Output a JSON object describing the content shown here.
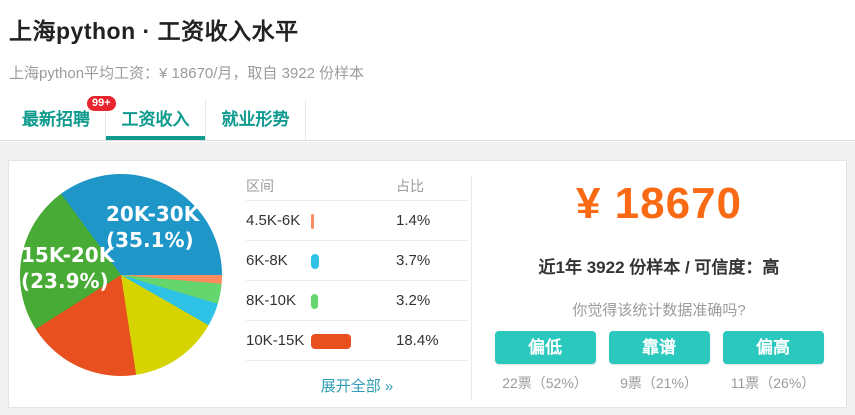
{
  "header": {
    "title": "上海python · 工资收入水平",
    "subtitle": "上海python平均工资：¥ 18670/月，取自 3922 份样本"
  },
  "tabs": [
    {
      "label": "最新招聘",
      "badge": "99+"
    },
    {
      "label": "工资收入",
      "active": true
    },
    {
      "label": "就业形势"
    }
  ],
  "chart_data": {
    "type": "pie",
    "legend_position": "none",
    "segments": [
      {
        "label": "4.5K-6K",
        "value": 1.4,
        "color": "#f98d5f"
      },
      {
        "label": "8K-10K",
        "value": 3.2,
        "color": "#65d56e"
      },
      {
        "label": "6K-8K",
        "value": 3.7,
        "color": "#2ec3e6"
      },
      {
        "label": "",
        "value": 14.3,
        "color": "#d6d400"
      },
      {
        "label": "10K-15K",
        "value": 18.4,
        "color": "#e8501f"
      },
      {
        "label": "15K-20K",
        "value": 23.9,
        "color": "#47ab35"
      },
      {
        "label": "20K-30K",
        "value": 35.1,
        "color": "#1e96c8"
      }
    ],
    "on_chart_labels": [
      {
        "line1": "20K-30K",
        "line2": "(35.1%)"
      },
      {
        "line1": "15K-20K",
        "line2": "(23.9%)"
      }
    ]
  },
  "table": {
    "headers": {
      "range": "区间",
      "share": "占比"
    },
    "rows": [
      {
        "range": "4.5K-6K",
        "share": "1.4%",
        "value": 1.4,
        "color": "#f98d5f"
      },
      {
        "range": "6K-8K",
        "share": "3.7%",
        "value": 3.7,
        "color": "#2ec3e6"
      },
      {
        "range": "8K-10K",
        "share": "3.2%",
        "value": 3.2,
        "color": "#65d56e"
      },
      {
        "range": "10K-15K",
        "share": "18.4%",
        "value": 18.4,
        "color": "#e8501f"
      }
    ],
    "expand_label": "展开全部 »"
  },
  "panel": {
    "salary": "¥ 18670",
    "sample_line": "近1年 3922 份样本 / 可信度：高",
    "question": "你觉得该统计数据准确吗?",
    "options": [
      {
        "label": "偏低",
        "votes": "22票（52%）"
      },
      {
        "label": "靠谱",
        "votes": "9票（21%）"
      },
      {
        "label": "偏高",
        "votes": "11票（26%）"
      }
    ]
  },
  "colors": {
    "accent_teal": "#0f9a8e",
    "badge_red": "#e8252e",
    "salary_orange": "#fa6a14",
    "button_teal": "#2bc8be",
    "link_blue": "#2f9db5"
  }
}
